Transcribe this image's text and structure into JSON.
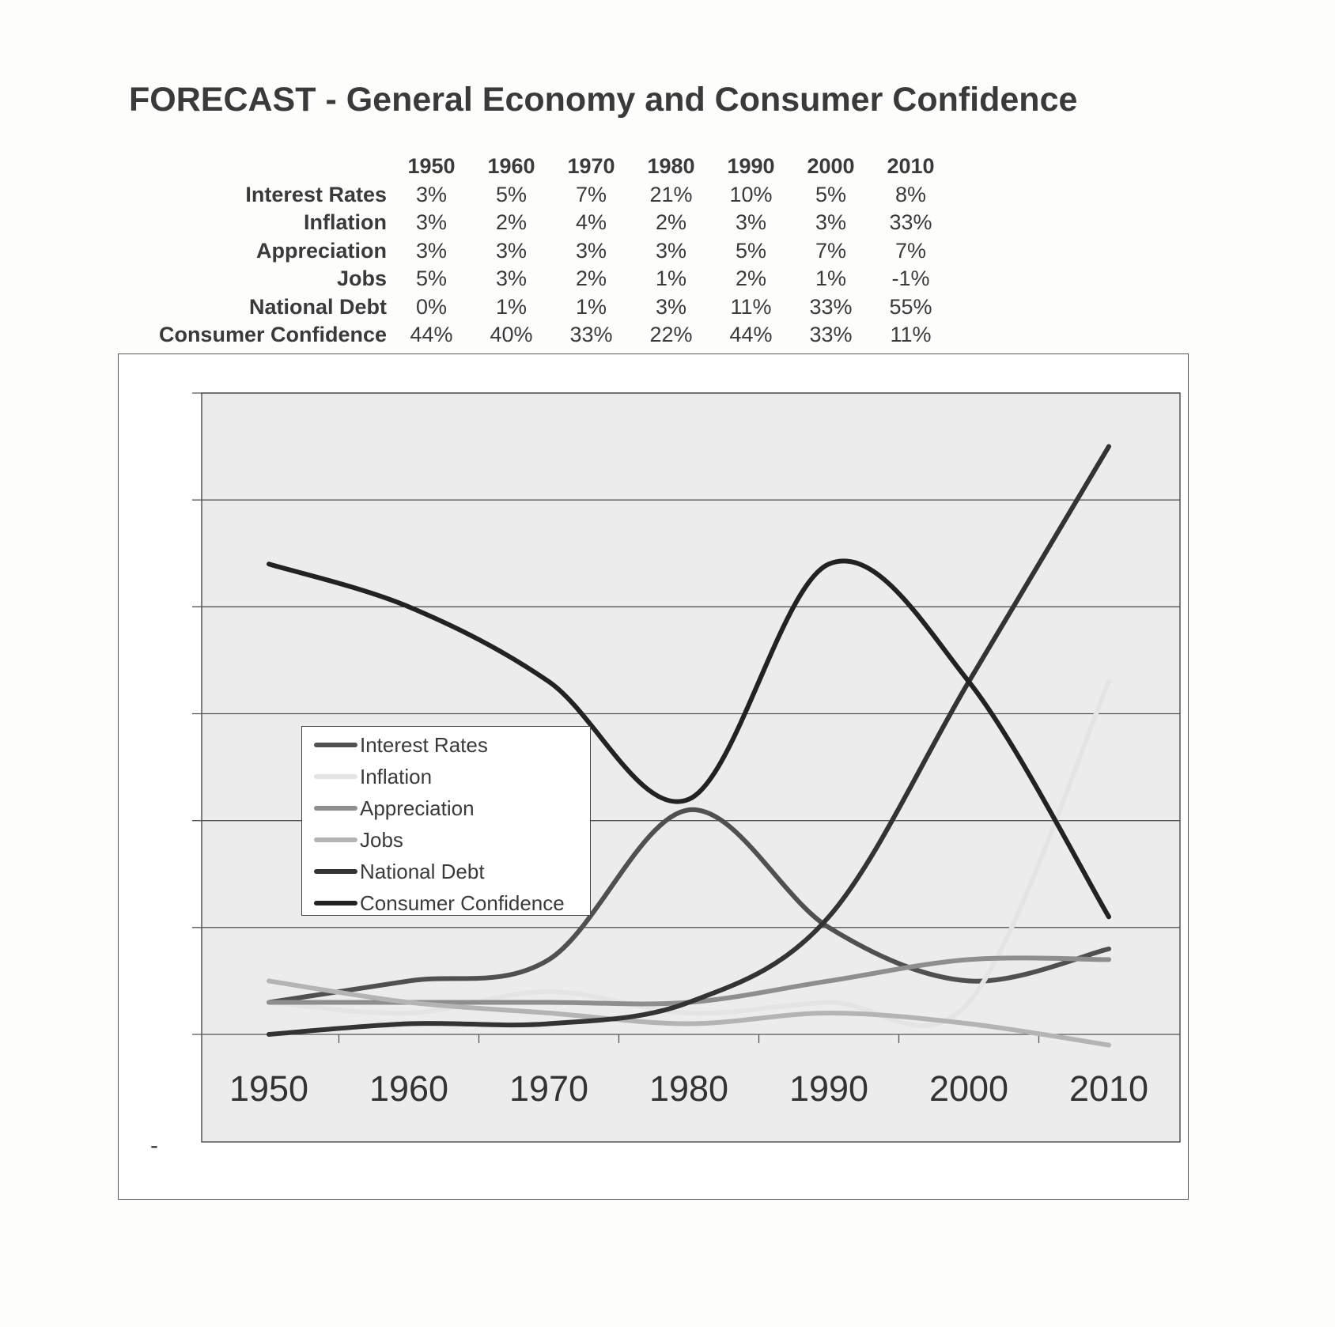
{
  "title": "FORECAST - General Economy and Consumer Confidence",
  "table": {
    "years": [
      "1950",
      "1960",
      "1970",
      "1980",
      "1990",
      "2000",
      "2010"
    ],
    "rows": [
      {
        "label": "Interest Rates",
        "values": [
          "3%",
          "5%",
          "7%",
          "21%",
          "10%",
          "5%",
          "8%"
        ]
      },
      {
        "label": "Inflation",
        "values": [
          "3%",
          "2%",
          "4%",
          "2%",
          "3%",
          "3%",
          "33%"
        ]
      },
      {
        "label": "Appreciation",
        "values": [
          "3%",
          "3%",
          "3%",
          "3%",
          "5%",
          "7%",
          "7%"
        ]
      },
      {
        "label": "Jobs",
        "values": [
          "5%",
          "3%",
          "2%",
          "1%",
          "2%",
          "1%",
          "-1%"
        ]
      },
      {
        "label": "National Debt",
        "values": [
          "0%",
          "1%",
          "1%",
          "3%",
          "11%",
          "33%",
          "55%"
        ]
      },
      {
        "label": "Consumer Confidence",
        "values": [
          "44%",
          "40%",
          "33%",
          "22%",
          "44%",
          "33%",
          "11%"
        ]
      }
    ]
  },
  "stray_mark": "-",
  "chart_data": {
    "type": "line",
    "x": [
      "1950",
      "1960",
      "1970",
      "1980",
      "1990",
      "2000",
      "2010"
    ],
    "ylim": [
      0,
      60
    ],
    "y_gridlines": [
      0,
      10,
      20,
      30,
      40,
      50,
      60
    ],
    "y_tick_labels_visible": false,
    "smooth": true,
    "series": [
      {
        "name": "Interest Rates",
        "values": [
          3,
          5,
          7,
          21,
          10,
          5,
          8
        ],
        "color": "#505050",
        "width": 6
      },
      {
        "name": "Inflation",
        "values": [
          3,
          2,
          4,
          2,
          3,
          3,
          33
        ],
        "color": "#e4e4e4",
        "width": 6
      },
      {
        "name": "Appreciation",
        "values": [
          3,
          3,
          3,
          3,
          5,
          7,
          7
        ],
        "color": "#8e8e8e",
        "width": 6
      },
      {
        "name": "Jobs",
        "values": [
          5,
          3,
          2,
          1,
          2,
          1,
          -1
        ],
        "color": "#b4b4b4",
        "width": 6
      },
      {
        "name": "National Debt",
        "values": [
          0,
          1,
          1,
          3,
          11,
          33,
          55
        ],
        "color": "#333333",
        "width": 6
      },
      {
        "name": "Consumer Confidence",
        "values": [
          44,
          40,
          33,
          22,
          44,
          33,
          11
        ],
        "color": "#222222",
        "width": 6
      }
    ],
    "legend_placement": "center-left",
    "plot_background": "#ececec",
    "grid_color": "#555555"
  }
}
